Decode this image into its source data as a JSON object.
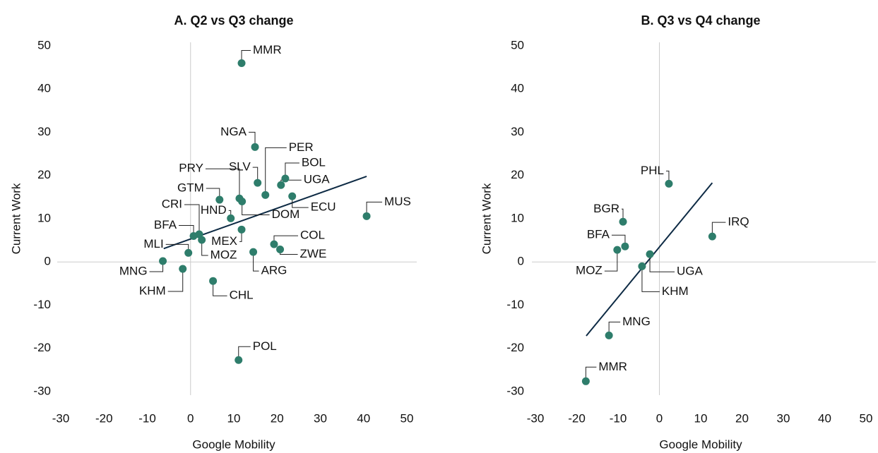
{
  "chart_data": [
    {
      "type": "scatter",
      "title": "A. Q2 vs Q3 change",
      "xlabel": "Google Mobility",
      "ylabel": "Current Work",
      "xlim": [
        -30,
        50
      ],
      "ylim": [
        -30,
        50
      ],
      "xticks": [
        -30,
        -20,
        -10,
        0,
        10,
        20,
        30,
        40,
        50
      ],
      "yticks": [
        -30,
        -20,
        -10,
        0,
        10,
        20,
        30,
        40,
        50
      ],
      "color": "#2e7d6b",
      "labels": [
        "MMR",
        "NGA",
        "PER",
        "SLV",
        "BOL",
        "UGA",
        "PRY",
        "GTM",
        "DOM",
        "ECU",
        "HND",
        "MUS",
        "CRI",
        "BFA",
        "MOZ",
        "MLI",
        "MEX",
        "COL",
        "ZWE",
        "ARG",
        "MNG",
        "KHM",
        "CHL",
        "POL"
      ],
      "x": [
        11.8,
        14.9,
        17.3,
        15.5,
        21.9,
        20.9,
        11.3,
        6.7,
        11.9,
        23.5,
        9.3,
        40.7,
        2.0,
        0.7,
        2.6,
        -0.5,
        11.8,
        19.3,
        20.7,
        14.5,
        -6.4,
        -1.8,
        5.2,
        11.1
      ],
      "y": [
        46.0,
        26.6,
        15.5,
        18.3,
        19.3,
        17.8,
        14.7,
        14.4,
        14.0,
        15.2,
        10.1,
        10.6,
        6.4,
        6.0,
        5.1,
        2.1,
        7.5,
        4.1,
        2.9,
        2.3,
        0.2,
        -1.6,
        -4.4,
        -22.7
      ],
      "trendline": {
        "color": "#0d2a44",
        "x": [
          -6.2,
          40.7
        ],
        "y": [
          3.1,
          19.8
        ]
      }
    },
    {
      "type": "scatter",
      "title": "B. Q3 vs Q4 change",
      "xlabel": "Google Mobility",
      "ylabel": "Current Work",
      "xlim": [
        -30,
        50
      ],
      "ylim": [
        -30,
        50
      ],
      "xticks": [
        -30,
        -20,
        -10,
        0,
        10,
        20,
        30,
        40,
        50
      ],
      "yticks": [
        -30,
        -20,
        -10,
        0,
        10,
        20,
        30,
        40,
        50
      ],
      "color": "#2e7d6b",
      "labels": [
        "PHL",
        "BGR",
        "IRQ",
        "BFA",
        "MOZ",
        "UGA",
        "KHM",
        "MNG",
        "MMR"
      ],
      "x": [
        2.3,
        -8.8,
        12.8,
        -8.3,
        -10.2,
        -2.3,
        -4.2,
        -12.2,
        -17.8
      ],
      "y": [
        18.1,
        9.3,
        5.9,
        3.6,
        2.8,
        1.8,
        -1.0,
        -17.0,
        -27.6
      ],
      "trendline": {
        "color": "#0d2a44",
        "x": [
          -17.7,
          12.8
        ],
        "y": [
          -17.1,
          18.3
        ]
      }
    }
  ]
}
